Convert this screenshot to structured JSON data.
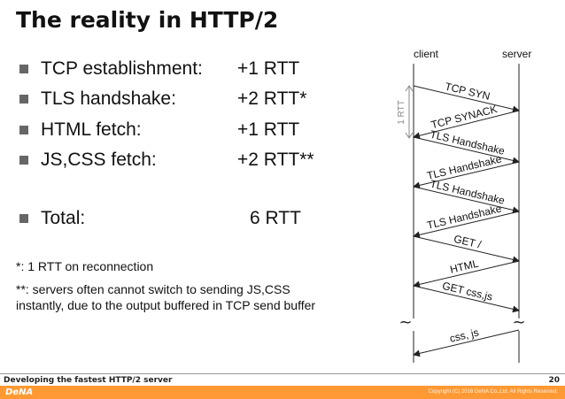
{
  "slide": {
    "title": "The reality in HTTP/2",
    "bullets": [
      {
        "label": "TCP establishment:",
        "value": "+1 RTT"
      },
      {
        "label": "TLS handshake:",
        "value": "+2 RTT*"
      },
      {
        "label": "HTML fetch:",
        "value": "+1 RTT"
      },
      {
        "label": "JS,CSS fetch:",
        "value": "+2 RTT**"
      },
      {
        "label": "Total:",
        "value": "6 RTT"
      }
    ],
    "notes": [
      "*: 1 RTT on reconnection",
      "**: servers often cannot switch to sending JS,CSS",
      "instantly, due to the output buffered in TCP send buffer"
    ]
  },
  "diagram": {
    "client_label": "client",
    "server_label": "server",
    "rtt_label": "1 RTT",
    "break_symbol": "~",
    "messages": [
      "TCP SYN",
      "TCP SYNACK",
      "TLS Handshake",
      "TLS Handshake",
      "TLS Handshake",
      "TLS Handshake",
      "GET /",
      "HTML",
      "GET css,js",
      "css, js"
    ]
  },
  "footer": {
    "text": "Developing the fastest HTTP/2 server",
    "page": "20",
    "logo": "DeNA",
    "copyright": "Copyright (C) 2016 DeNA Co.,Ltd. All Rights Reserved."
  },
  "colors": {
    "accent_bar": "#ff9933",
    "bullet_square": "#666666",
    "arrow": "#222222",
    "rtt_bracket": "#888888"
  }
}
